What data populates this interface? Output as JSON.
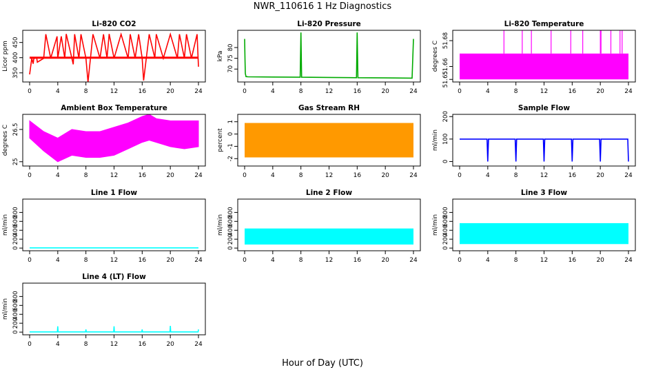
{
  "figure": {
    "title": "NWR_110616  1 Hz Diagnostics",
    "xlabel": "Hour of Day (UTC)"
  },
  "chart_data": [
    {
      "type": "line",
      "title": "Li-820 CO2",
      "ylabel": "Licor ppm",
      "xlim": [
        0,
        24
      ],
      "xticks": [
        0,
        4,
        8,
        12,
        16,
        20,
        24
      ],
      "ylim": [
        320,
        490
      ],
      "yticks": [
        350,
        400,
        450
      ],
      "color": "#ff0000",
      "baseline": [
        380,
        420
      ],
      "series": [
        {
          "x": [
            0,
            0.3,
            0.5,
            0.6,
            1,
            1.1,
            2,
            2.3,
            3,
            3.9,
            4,
            4.5,
            5,
            5.2,
            6,
            6.2,
            6.4,
            7,
            7.3,
            8,
            8.3,
            9,
            10,
            10.5,
            11,
            11.3,
            12,
            13,
            14,
            14.3,
            15,
            15.5,
            16,
            16.2,
            17,
            17.8,
            18,
            19,
            20,
            21,
            21.3,
            22,
            22.3,
            23,
            23.8,
            24
          ],
          "y": [
            345,
            398,
            380,
            397,
            400,
            385,
            398,
            477,
            398,
            470,
            398,
            470,
            398,
            478,
            398,
            378,
            477,
            398,
            477,
            398,
            320,
            477,
            398,
            477,
            398,
            478,
            398,
            477,
            398,
            477,
            398,
            477,
            398,
            325,
            477,
            398,
            477,
            398,
            477,
            398,
            477,
            398,
            477,
            398,
            477,
            370
          ]
        }
      ]
    },
    {
      "type": "line",
      "title": "Li-820 Pressure",
      "ylabel": "kPa",
      "xlim": [
        0,
        24
      ],
      "xticks": [
        0,
        4,
        8,
        12,
        16,
        20,
        24
      ],
      "ylim": [
        64,
        88
      ],
      "yticks": [
        70,
        75,
        80
      ],
      "color": "#00aa00",
      "series": [
        {
          "x": [
            0,
            0.05,
            0.1,
            0.2,
            0.5,
            4,
            7.9,
            8,
            8.1,
            12,
            15.9,
            16,
            16.1,
            20,
            23.8,
            24
          ],
          "y": [
            84,
            75,
            68,
            66.5,
            66.4,
            66.3,
            66.2,
            87,
            66.2,
            66.1,
            66,
            87,
            66,
            65.9,
            65.8,
            84
          ]
        }
      ]
    },
    {
      "type": "area",
      "title": "Li-820 Temperature",
      "ylabel": "degrees C",
      "xlim": [
        0,
        24
      ],
      "xticks": [
        0,
        4,
        8,
        12,
        16,
        20,
        24
      ],
      "ylim": [
        51.648,
        51.688
      ],
      "yticks": [
        51.65,
        51.66,
        51.68
      ],
      "color": "#ff00ff",
      "band": [
        51.65,
        51.67
      ],
      "series": [
        {
          "x": [
            6.3,
            8.9,
            10.2,
            13,
            15.8,
            17.5,
            20,
            20.1,
            21.5,
            22.8,
            23.1
          ],
          "y": [
            51.688,
            51.688,
            51.688,
            51.688,
            51.688,
            51.688,
            51.688,
            51.688,
            51.688,
            51.688,
            51.688
          ]
        }
      ]
    },
    {
      "type": "area",
      "title": "Ambient Box Temperature",
      "ylabel": "degrees C",
      "xlim": [
        0,
        24
      ],
      "xticks": [
        0,
        4,
        8,
        12,
        16,
        20,
        24
      ],
      "ylim": [
        24.8,
        27.2
      ],
      "yticks": [
        25.0,
        26.5
      ],
      "color": "#ff00ff",
      "series": [
        {
          "name": "upper",
          "x": [
            0,
            2,
            4,
            6,
            8,
            10,
            12,
            14,
            16,
            17,
            18,
            20,
            22,
            24
          ],
          "y": [
            26.9,
            26.4,
            26.1,
            26.5,
            26.4,
            26.4,
            26.6,
            26.8,
            27.1,
            27.2,
            27,
            26.9,
            26.9,
            26.9
          ]
        },
        {
          "name": "lower",
          "x": [
            0,
            2,
            4,
            6,
            8,
            10,
            12,
            14,
            16,
            17,
            18,
            20,
            22,
            24
          ],
          "y": [
            26.1,
            25.5,
            25,
            25.3,
            25.2,
            25.2,
            25.3,
            25.6,
            25.9,
            26,
            25.9,
            25.7,
            25.6,
            25.7
          ]
        }
      ]
    },
    {
      "type": "area",
      "title": "Gas Stream RH",
      "ylabel": "percent",
      "xlim": [
        0,
        24
      ],
      "xticks": [
        0,
        4,
        8,
        12,
        16,
        20,
        24
      ],
      "ylim": [
        -2.6,
        1.6
      ],
      "yticks": [
        -2,
        -1,
        0,
        1
      ],
      "color": "#ff9900",
      "band": [
        -1.9,
        0.9
      ],
      "series": []
    },
    {
      "type": "line",
      "title": "Sample Flow",
      "ylabel": "ml/min",
      "xlim": [
        0,
        24
      ],
      "xticks": [
        0,
        4,
        8,
        12,
        16,
        20,
        24
      ],
      "ylim": [
        -20,
        210
      ],
      "yticks": [
        0,
        100,
        200
      ],
      "color": "#0000ff",
      "series": [
        {
          "x": [
            0,
            3.9,
            4,
            4.1,
            7.9,
            8,
            8.1,
            11.9,
            12,
            12.1,
            15.9,
            16,
            16.1,
            19.9,
            20,
            20.1,
            23.9,
            24
          ],
          "y": [
            100,
            100,
            0,
            100,
            100,
            0,
            100,
            100,
            0,
            100,
            100,
            0,
            100,
            100,
            0,
            100,
            100,
            0
          ]
        }
      ]
    },
    {
      "type": "line",
      "title": "Line 1 Flow",
      "ylabel": "ml/min",
      "xlim": [
        0,
        24
      ],
      "xticks": [
        0,
        4,
        8,
        12,
        16,
        20,
        24
      ],
      "ylim": [
        -60,
        1100
      ],
      "yticks": [
        0,
        200,
        400,
        600,
        800
      ],
      "color": "#00ffff",
      "series": [
        {
          "x": [
            0,
            24
          ],
          "y": [
            5,
            5
          ]
        }
      ]
    },
    {
      "type": "area",
      "title": "Line 2 Flow",
      "ylabel": "ml/min",
      "xlim": [
        0,
        24
      ],
      "xticks": [
        0,
        4,
        8,
        12,
        16,
        20,
        24
      ],
      "ylim": [
        -60,
        1100
      ],
      "yticks": [
        0,
        200,
        400,
        600,
        800
      ],
      "color": "#00ffff",
      "band": [
        80,
        440
      ],
      "series": []
    },
    {
      "type": "area",
      "title": "Line 3 Flow",
      "ylabel": "ml/min",
      "xlim": [
        0,
        24
      ],
      "xticks": [
        0,
        4,
        8,
        12,
        16,
        20,
        24
      ],
      "ylim": [
        -60,
        1100
      ],
      "yticks": [
        0,
        200,
        400,
        600,
        800
      ],
      "color": "#00ffff",
      "band": [
        90,
        560
      ],
      "series": []
    },
    {
      "type": "line",
      "title": "Line 4 (LT) Flow",
      "ylabel": "ml/min",
      "xlim": [
        0,
        24
      ],
      "xticks": [
        0,
        4,
        8,
        12,
        16,
        20,
        24
      ],
      "ylim": [
        -60,
        1100
      ],
      "yticks": [
        0,
        200,
        400,
        600,
        800
      ],
      "color": "#00ffff",
      "series": [
        {
          "x": [
            0,
            3.95,
            4,
            4.05,
            7.95,
            8,
            8.05,
            11.95,
            12,
            12.05,
            15.95,
            16,
            16.05,
            19.95,
            20,
            20.05,
            23.95,
            24
          ],
          "y": [
            5,
            5,
            130,
            5,
            5,
            60,
            5,
            5,
            130,
            5,
            5,
            60,
            5,
            5,
            140,
            5,
            5,
            60
          ]
        }
      ]
    }
  ]
}
